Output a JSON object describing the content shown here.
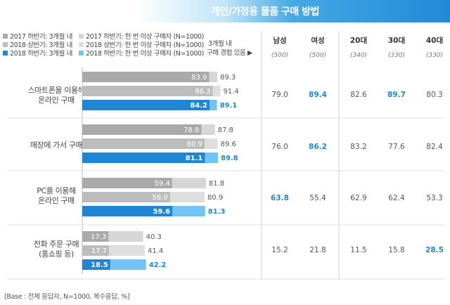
{
  "title": "개인/가정용 물품 구매 방법",
  "legend": {
    "items": [
      {
        "label": "2017 하반기: 3개월 내",
        "color": "#a9a9a9"
      },
      {
        "label": "2017 하반기: 한 번 이상 구매자 (N=1000)",
        "color": "#d6d6d6"
      },
      {
        "label": "2018 상반기: 3개월 내",
        "color": "#bdbdbd"
      },
      {
        "label": "2018 상반기: 한 번 이상 구매자 (N=1000)",
        "color": "#dedede"
      },
      {
        "label": "2018 하반기: 3개월 내",
        "color": "#1e86d4"
      },
      {
        "label": "2018 하반기: 한 번 이상 구매자 (N=1000)",
        "color": "#73c4f6"
      }
    ],
    "note_line1": "3개월 내",
    "note_line2": "구매 경험 있음 ▶"
  },
  "chart_data": {
    "type": "bar",
    "orientation": "horizontal",
    "categories": [
      {
        "line1": "스마트폰을 이용해",
        "line2": "온라인 구매"
      },
      {
        "line1": "매장에 가서 구매",
        "line2": ""
      },
      {
        "line1": "PC를 이용해",
        "line2": "온라인 구매"
      },
      {
        "line1": "전화 주문 구매",
        "line2": "(홈쇼핑 등)"
      }
    ],
    "series": [
      {
        "name": "2017 하반기",
        "within_3_months": [
          83.9,
          78.8,
          59.4,
          17.3
        ],
        "ever_purchased": [
          89.3,
          87.8,
          81.8,
          40.3
        ],
        "color_inner": "#a9a9a9",
        "color_outer": "#d6d6d6"
      },
      {
        "name": "2018 상반기",
        "within_3_months": [
          86.3,
          80.9,
          58.0,
          17.7
        ],
        "ever_purchased": [
          91.4,
          89.6,
          80.9,
          41.4
        ],
        "color_inner": "#bdbdbd",
        "color_outer": "#dedede"
      },
      {
        "name": "2018 하반기",
        "within_3_months": [
          84.2,
          81.1,
          59.6,
          18.5
        ],
        "ever_purchased": [
          89.1,
          89.8,
          81.3,
          42.2
        ],
        "color_inner": "#1e86d4",
        "color_outer": "#73c4f6"
      }
    ],
    "xlim": [
      0,
      100
    ],
    "table": {
      "columns": [
        {
          "label": "남성",
          "n": "(500)"
        },
        {
          "label": "여성",
          "n": "(500)"
        },
        {
          "label": "20대",
          "n": "(340)"
        },
        {
          "label": "30대",
          "n": "(330)"
        },
        {
          "label": "40대",
          "n": "(330)"
        }
      ],
      "rows": [
        {
          "values": [
            "79.0",
            "89.4",
            "82.6",
            "89.7",
            "80.3"
          ],
          "highlight": [
            false,
            true,
            false,
            true,
            false
          ]
        },
        {
          "values": [
            "76.0",
            "86.2",
            "83.2",
            "77.6",
            "82.4"
          ],
          "highlight": [
            false,
            true,
            false,
            false,
            false
          ]
        },
        {
          "values": [
            "63.8",
            "55.4",
            "62.9",
            "62.4",
            "53.3"
          ],
          "highlight": [
            true,
            false,
            false,
            false,
            false
          ]
        },
        {
          "values": [
            "15.2",
            "21.8",
            "11.5",
            "15.8",
            "28.5"
          ],
          "highlight": [
            false,
            false,
            false,
            false,
            true
          ]
        }
      ]
    }
  },
  "base_note": "[Base : 전체 응답자, N=1000, 복수응답, %]"
}
